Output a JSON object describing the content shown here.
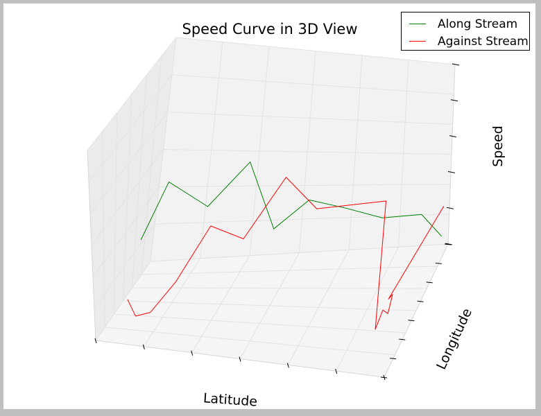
{
  "chart_data": {
    "type": "line",
    "projection": "3d",
    "title": "Speed Curve in 3D View",
    "xlabel": "Latitude",
    "ylabel": "Longitude",
    "zlabel": "Speed",
    "grid": true,
    "legend": {
      "position": "top-right"
    },
    "series": [
      {
        "name": "Along Stream",
        "color": "#008000",
        "points": [
          [
            0.05,
            0.5,
            0.3
          ],
          [
            0.13,
            0.5,
            0.6
          ],
          [
            0.26,
            0.5,
            0.5
          ],
          [
            0.38,
            0.5,
            0.76
          ],
          [
            0.48,
            0.5,
            0.42
          ],
          [
            0.58,
            0.5,
            0.6
          ],
          [
            0.7,
            0.5,
            0.58
          ],
          [
            0.82,
            0.5,
            0.55
          ],
          [
            0.94,
            0.5,
            0.6
          ],
          [
            1.02,
            0.5,
            0.48
          ]
        ]
      },
      {
        "name": "Against Stream",
        "color": "#ff0000",
        "points": [
          [
            0.02,
            0.47,
            0.02
          ],
          [
            0.05,
            0.47,
            -0.06
          ],
          [
            0.1,
            0.47,
            -0.04
          ],
          [
            0.18,
            0.47,
            0.12
          ],
          [
            0.28,
            0.47,
            0.42
          ],
          [
            0.39,
            0.47,
            0.37
          ],
          [
            0.5,
            0.47,
            0.73
          ],
          [
            0.61,
            0.47,
            0.58
          ],
          [
            0.82,
            0.47,
            0.68
          ],
          [
            0.88,
            0.47,
            -0.1
          ],
          [
            0.89,
            0.47,
            0.02
          ],
          [
            0.91,
            0.47,
            0.0
          ],
          [
            0.91,
            0.47,
            0.12
          ],
          [
            0.9,
            0.47,
            0.09
          ],
          [
            1.0,
            0.47,
            0.7
          ]
        ]
      }
    ]
  }
}
